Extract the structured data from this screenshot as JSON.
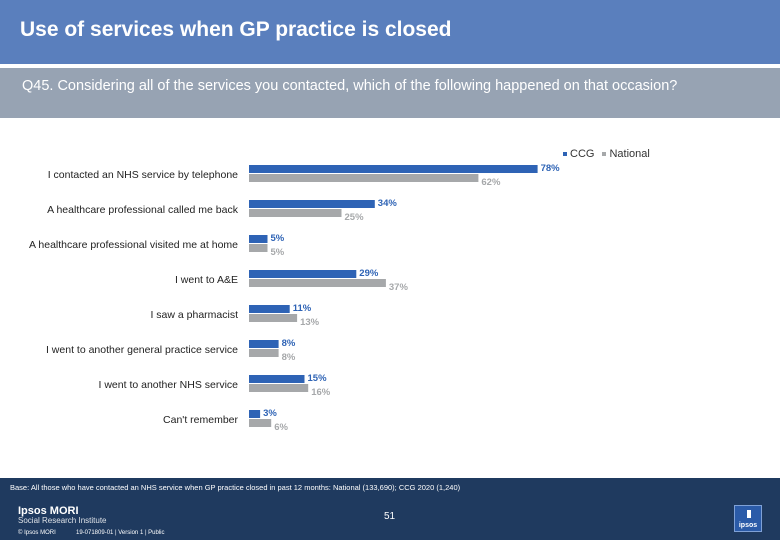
{
  "slide": {
    "title": "Use of services when GP practice is closed",
    "question": "Q45. Considering all of the services you contacted, which of the following happened on that occasion?"
  },
  "colors": {
    "ccg": "#2e63b5",
    "national": "#a6a8aa",
    "title_bg": "#5a7fbd",
    "question_bg": "#97a3b3",
    "footer_bg": "#1f3a5f"
  },
  "chart_data": {
    "type": "bar",
    "orientation": "horizontal",
    "categories": [
      "I contacted an NHS service by telephone",
      "A healthcare professional called me back",
      "A healthcare professional visited me at home",
      "I went to A&E",
      "I saw a pharmacist",
      "I went to another general practice service",
      "I  went to another NHS service",
      "Can't remember"
    ],
    "series": [
      {
        "name": "CCG",
        "values": [
          78,
          34,
          5,
          29,
          11,
          8,
          15,
          3
        ],
        "labels": [
          "78%",
          "34%",
          "5%",
          "29%",
          "11%",
          "8%",
          "15%",
          "3%"
        ]
      },
      {
        "name": "National",
        "values": [
          62,
          25,
          5,
          37,
          13,
          8,
          16,
          6
        ],
        "labels": [
          "62%",
          "25%",
          "5%",
          "37%",
          "13%",
          "8%",
          "16%",
          "6%"
        ]
      }
    ],
    "xlim": [
      0,
      100
    ],
    "legend_position": "top-right"
  },
  "footer": {
    "base_note": "Base: All those who have contacted an NHS service when GP practice closed in past 12 months: National (133,690); CCG 2020 (1,240)",
    "logo_brand": "Ipsos MORI",
    "logo_sub": "Social Research Institute",
    "page_number": "51",
    "copyright": "© Ipsos MORI",
    "job_number": "19-071809-01 | Version 1 | Public",
    "badge_text": "ipsos"
  }
}
